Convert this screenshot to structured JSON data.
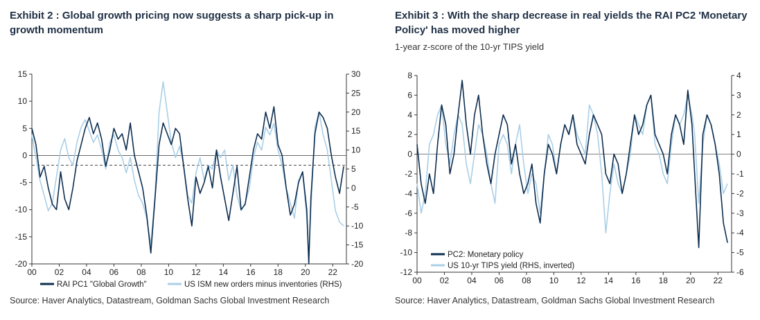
{
  "panels": [
    {
      "title": "Exhibit 2 : Global growth pricing now suggests a sharp pick-up in growth momentum",
      "subtitle": "",
      "source": "Source: Haver Analytics, Datastream, Goldman Sachs Global Investment Research"
    },
    {
      "title": "Exhibit 3 : With the sharp decrease in real yields the RAI PC2 'Monetary Policy' has moved higher",
      "subtitle": "1-year z-score of the 10-yr TIPS yield",
      "source": "Source: Haver Analytics, Datastream, Goldman Sachs Global Investment Research"
    }
  ],
  "colors": {
    "dark": "#0d2d4f",
    "light": "#a9cfe6",
    "zero": "#555555"
  },
  "chart_data": [
    {
      "type": "line",
      "x_tick_labels": [
        "00",
        "02",
        "04",
        "06",
        "08",
        "10",
        "12",
        "14",
        "16",
        "18",
        "20",
        "22"
      ],
      "xlim": [
        2000,
        2023
      ],
      "ylim_left": [
        -20,
        15
      ],
      "ylim_right": [
        -20,
        30
      ],
      "y_ticks_left": [
        15,
        10,
        5,
        0,
        -5,
        -10,
        -15,
        -20
      ],
      "y_ticks_right": [
        30,
        25,
        20,
        15,
        10,
        5,
        0,
        -5,
        -10,
        -15,
        -20
      ],
      "reference_line_right": 6,
      "series": [
        {
          "name": "RAI PC1 \"Global Growth\"",
          "axis": "left",
          "color": "#0d2d4f",
          "x": [
            2000.0,
            2000.3,
            2000.6,
            2000.9,
            2001.2,
            2001.5,
            2001.8,
            2002.1,
            2002.4,
            2002.7,
            2003.0,
            2003.3,
            2003.6,
            2003.9,
            2004.2,
            2004.5,
            2004.8,
            2005.1,
            2005.4,
            2005.7,
            2006.0,
            2006.3,
            2006.6,
            2006.9,
            2007.2,
            2007.5,
            2007.8,
            2008.1,
            2008.4,
            2008.7,
            2009.0,
            2009.3,
            2009.6,
            2009.9,
            2010.2,
            2010.5,
            2010.8,
            2011.1,
            2011.4,
            2011.7,
            2012.0,
            2012.3,
            2012.6,
            2012.9,
            2013.2,
            2013.5,
            2013.8,
            2014.1,
            2014.4,
            2014.7,
            2015.0,
            2015.3,
            2015.6,
            2015.9,
            2016.2,
            2016.5,
            2016.8,
            2017.1,
            2017.4,
            2017.7,
            2018.0,
            2018.3,
            2018.6,
            2018.9,
            2019.2,
            2019.5,
            2019.8,
            2020.1,
            2020.25,
            2020.4,
            2020.7,
            2021.0,
            2021.3,
            2021.6,
            2021.9,
            2022.2,
            2022.5,
            2022.8
          ],
          "y": [
            5,
            2,
            -4,
            -2,
            -6,
            -9,
            -10,
            -3,
            -8,
            -10,
            -6,
            -1,
            2,
            5,
            7,
            4,
            6,
            3,
            -2,
            1,
            5,
            3,
            4,
            1,
            6,
            0,
            -3,
            -6,
            -11,
            -18,
            -8,
            2,
            6,
            4,
            2,
            5,
            4,
            -2,
            -8,
            -13,
            -4,
            -7,
            -5,
            -2,
            -6,
            1,
            -4,
            -8,
            -12,
            -7,
            -2,
            -10,
            -9,
            -4,
            1,
            4,
            3,
            8,
            5,
            9,
            2,
            0,
            -6,
            -11,
            -9,
            -5,
            -3,
            -10,
            -20,
            -8,
            4,
            8,
            7,
            5,
            0,
            -4,
            -7,
            -2
          ]
        },
        {
          "name": "US ISM new orders minus inventories (RHS)",
          "axis": "right",
          "color": "#a9cfe6",
          "x": [
            2000.0,
            2000.3,
            2000.6,
            2000.9,
            2001.2,
            2001.5,
            2001.8,
            2002.1,
            2002.4,
            2002.7,
            2003.0,
            2003.3,
            2003.6,
            2003.9,
            2004.2,
            2004.5,
            2004.8,
            2005.1,
            2005.4,
            2005.7,
            2006.0,
            2006.3,
            2006.6,
            2006.9,
            2007.2,
            2007.5,
            2007.8,
            2008.1,
            2008.4,
            2008.7,
            2009.0,
            2009.3,
            2009.6,
            2009.9,
            2010.2,
            2010.5,
            2010.8,
            2011.1,
            2011.4,
            2011.7,
            2012.0,
            2012.3,
            2012.6,
            2012.9,
            2013.2,
            2013.5,
            2013.8,
            2014.1,
            2014.4,
            2014.7,
            2015.0,
            2015.3,
            2015.6,
            2015.9,
            2016.2,
            2016.5,
            2016.8,
            2017.1,
            2017.4,
            2017.7,
            2018.0,
            2018.3,
            2018.6,
            2018.9,
            2019.2,
            2019.5,
            2019.8,
            2020.1,
            2020.25,
            2020.4,
            2020.7,
            2021.0,
            2021.3,
            2021.6,
            2021.9,
            2022.2,
            2022.5,
            2022.8
          ],
          "y": [
            14,
            8,
            2,
            -2,
            -6,
            -4,
            3,
            10,
            13,
            8,
            6,
            12,
            16,
            18,
            15,
            12,
            14,
            10,
            5,
            12,
            14,
            10,
            8,
            4,
            8,
            2,
            -2,
            -4,
            -8,
            -15,
            -2,
            20,
            28,
            20,
            12,
            8,
            11,
            6,
            -2,
            -4,
            4,
            8,
            2,
            6,
            5,
            10,
            8,
            10,
            2,
            6,
            -2,
            -6,
            -4,
            0,
            8,
            12,
            10,
            16,
            14,
            17,
            10,
            6,
            0,
            -4,
            -8,
            2,
            4,
            -8,
            -18,
            -6,
            16,
            20,
            14,
            10,
            2,
            -6,
            -9,
            -10
          ]
        }
      ]
    },
    {
      "type": "line",
      "x_tick_labels": [
        "00",
        "02",
        "04",
        "06",
        "08",
        "10",
        "12",
        "14",
        "16",
        "18",
        "20",
        "22"
      ],
      "xlim": [
        2000,
        2023
      ],
      "ylim_left": [
        -12,
        8
      ],
      "ylim_right": [
        -6,
        4
      ],
      "y_ticks_left": [
        8,
        6,
        4,
        2,
        0,
        -2,
        -4,
        -6,
        -8,
        -10,
        -12
      ],
      "y_ticks_right": [
        4,
        3,
        2,
        1,
        0,
        -1,
        -2,
        -3,
        -4,
        -5,
        -6
      ],
      "series": [
        {
          "name": "PC2: Monetary policy",
          "axis": "left",
          "color": "#0d2d4f",
          "x": [
            2000.0,
            2000.3,
            2000.6,
            2000.9,
            2001.2,
            2001.5,
            2001.8,
            2002.1,
            2002.4,
            2002.7,
            2003.0,
            2003.3,
            2003.6,
            2003.9,
            2004.2,
            2004.5,
            2004.8,
            2005.1,
            2005.4,
            2005.7,
            2006.0,
            2006.3,
            2006.6,
            2006.9,
            2007.2,
            2007.5,
            2007.8,
            2008.1,
            2008.4,
            2008.7,
            2009.0,
            2009.3,
            2009.6,
            2009.9,
            2010.2,
            2010.5,
            2010.8,
            2011.1,
            2011.4,
            2011.7,
            2012.0,
            2012.3,
            2012.6,
            2012.9,
            2013.2,
            2013.5,
            2013.8,
            2014.1,
            2014.4,
            2014.7,
            2015.0,
            2015.3,
            2015.6,
            2015.9,
            2016.2,
            2016.5,
            2016.8,
            2017.1,
            2017.4,
            2017.7,
            2018.0,
            2018.3,
            2018.6,
            2018.9,
            2019.2,
            2019.5,
            2019.8,
            2020.1,
            2020.3,
            2020.6,
            2020.9,
            2021.2,
            2021.5,
            2021.8,
            2022.1,
            2022.4,
            2022.7
          ],
          "y": [
            1,
            -3,
            -5,
            -2,
            -4,
            1,
            5,
            3,
            -2,
            0,
            4,
            7.5,
            3,
            0,
            4,
            6,
            2,
            -1,
            -3,
            0,
            2,
            4,
            3,
            -1,
            1,
            -2,
            -4,
            -3,
            -1,
            -5,
            -7,
            -2,
            1,
            0,
            -2,
            1,
            3,
            2,
            4,
            1,
            0,
            -1,
            2,
            4,
            3,
            2,
            -2,
            -3,
            0,
            -1,
            -4,
            -2,
            1,
            4,
            2,
            3,
            5,
            6,
            2,
            1,
            0,
            -2,
            2,
            4,
            3,
            1,
            6.5,
            3,
            -2,
            -9.5,
            2,
            4,
            3,
            1,
            -2,
            -7,
            -9
          ]
        },
        {
          "name": "US 10-yr TIPS  yield (RHS, inverted)",
          "axis": "right",
          "color": "#a9cfe6",
          "x": [
            2000.0,
            2000.3,
            2000.6,
            2000.9,
            2001.2,
            2001.5,
            2001.8,
            2002.1,
            2002.4,
            2002.7,
            2003.0,
            2003.3,
            2003.6,
            2003.9,
            2004.2,
            2004.5,
            2004.8,
            2005.1,
            2005.4,
            2005.7,
            2006.0,
            2006.3,
            2006.6,
            2006.9,
            2007.2,
            2007.5,
            2007.8,
            2008.1,
            2008.4,
            2008.7,
            2009.0,
            2009.3,
            2009.6,
            2009.9,
            2010.2,
            2010.5,
            2010.8,
            2011.1,
            2011.4,
            2011.7,
            2012.0,
            2012.3,
            2012.6,
            2012.9,
            2013.2,
            2013.5,
            2013.8,
            2014.1,
            2014.4,
            2014.7,
            2015.0,
            2015.3,
            2015.6,
            2015.9,
            2016.2,
            2016.5,
            2016.8,
            2017.1,
            2017.4,
            2017.7,
            2018.0,
            2018.3,
            2018.6,
            2018.9,
            2019.2,
            2019.5,
            2019.8,
            2020.1,
            2020.3,
            2020.6,
            2020.9,
            2021.2,
            2021.5,
            2021.8,
            2022.1,
            2022.4,
            2022.7
          ],
          "y": [
            -1.5,
            -3,
            -2,
            0.5,
            1,
            2,
            2.5,
            0.5,
            -0.5,
            1,
            2,
            1.5,
            -0.5,
            -1.5,
            0,
            1.5,
            1,
            0,
            -1.5,
            -2.5,
            0.5,
            1,
            0.5,
            -1,
            0.5,
            1.5,
            -0.5,
            -2,
            -1,
            -1.5,
            -3,
            -1,
            1,
            0.5,
            -1,
            0.5,
            1.5,
            1,
            2,
            1,
            0.5,
            0,
            2.5,
            2,
            1,
            -1,
            -4,
            -2,
            -0.5,
            -1.5,
            -2,
            -1,
            0,
            2,
            1.5,
            1,
            2.5,
            3,
            0.5,
            0,
            -1,
            -1.5,
            0.5,
            2,
            1.5,
            2,
            3,
            2,
            1,
            -2.5,
            0.5,
            2,
            1.5,
            0.5,
            -0.5,
            -2,
            -1.5
          ]
        }
      ]
    }
  ]
}
